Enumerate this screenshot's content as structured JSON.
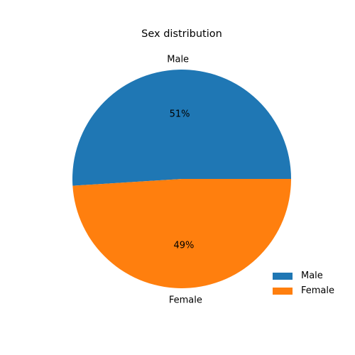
{
  "chart_data": {
    "type": "pie",
    "title": "Sex distribution",
    "categories": [
      "Male",
      "Female"
    ],
    "values": [
      51,
      49
    ],
    "value_labels": [
      "51%",
      "49%"
    ],
    "colors": [
      "#1f77b4",
      "#ff7f0e"
    ],
    "legend": {
      "position": "bottom-right",
      "entries": [
        "Male",
        "Female"
      ]
    }
  }
}
